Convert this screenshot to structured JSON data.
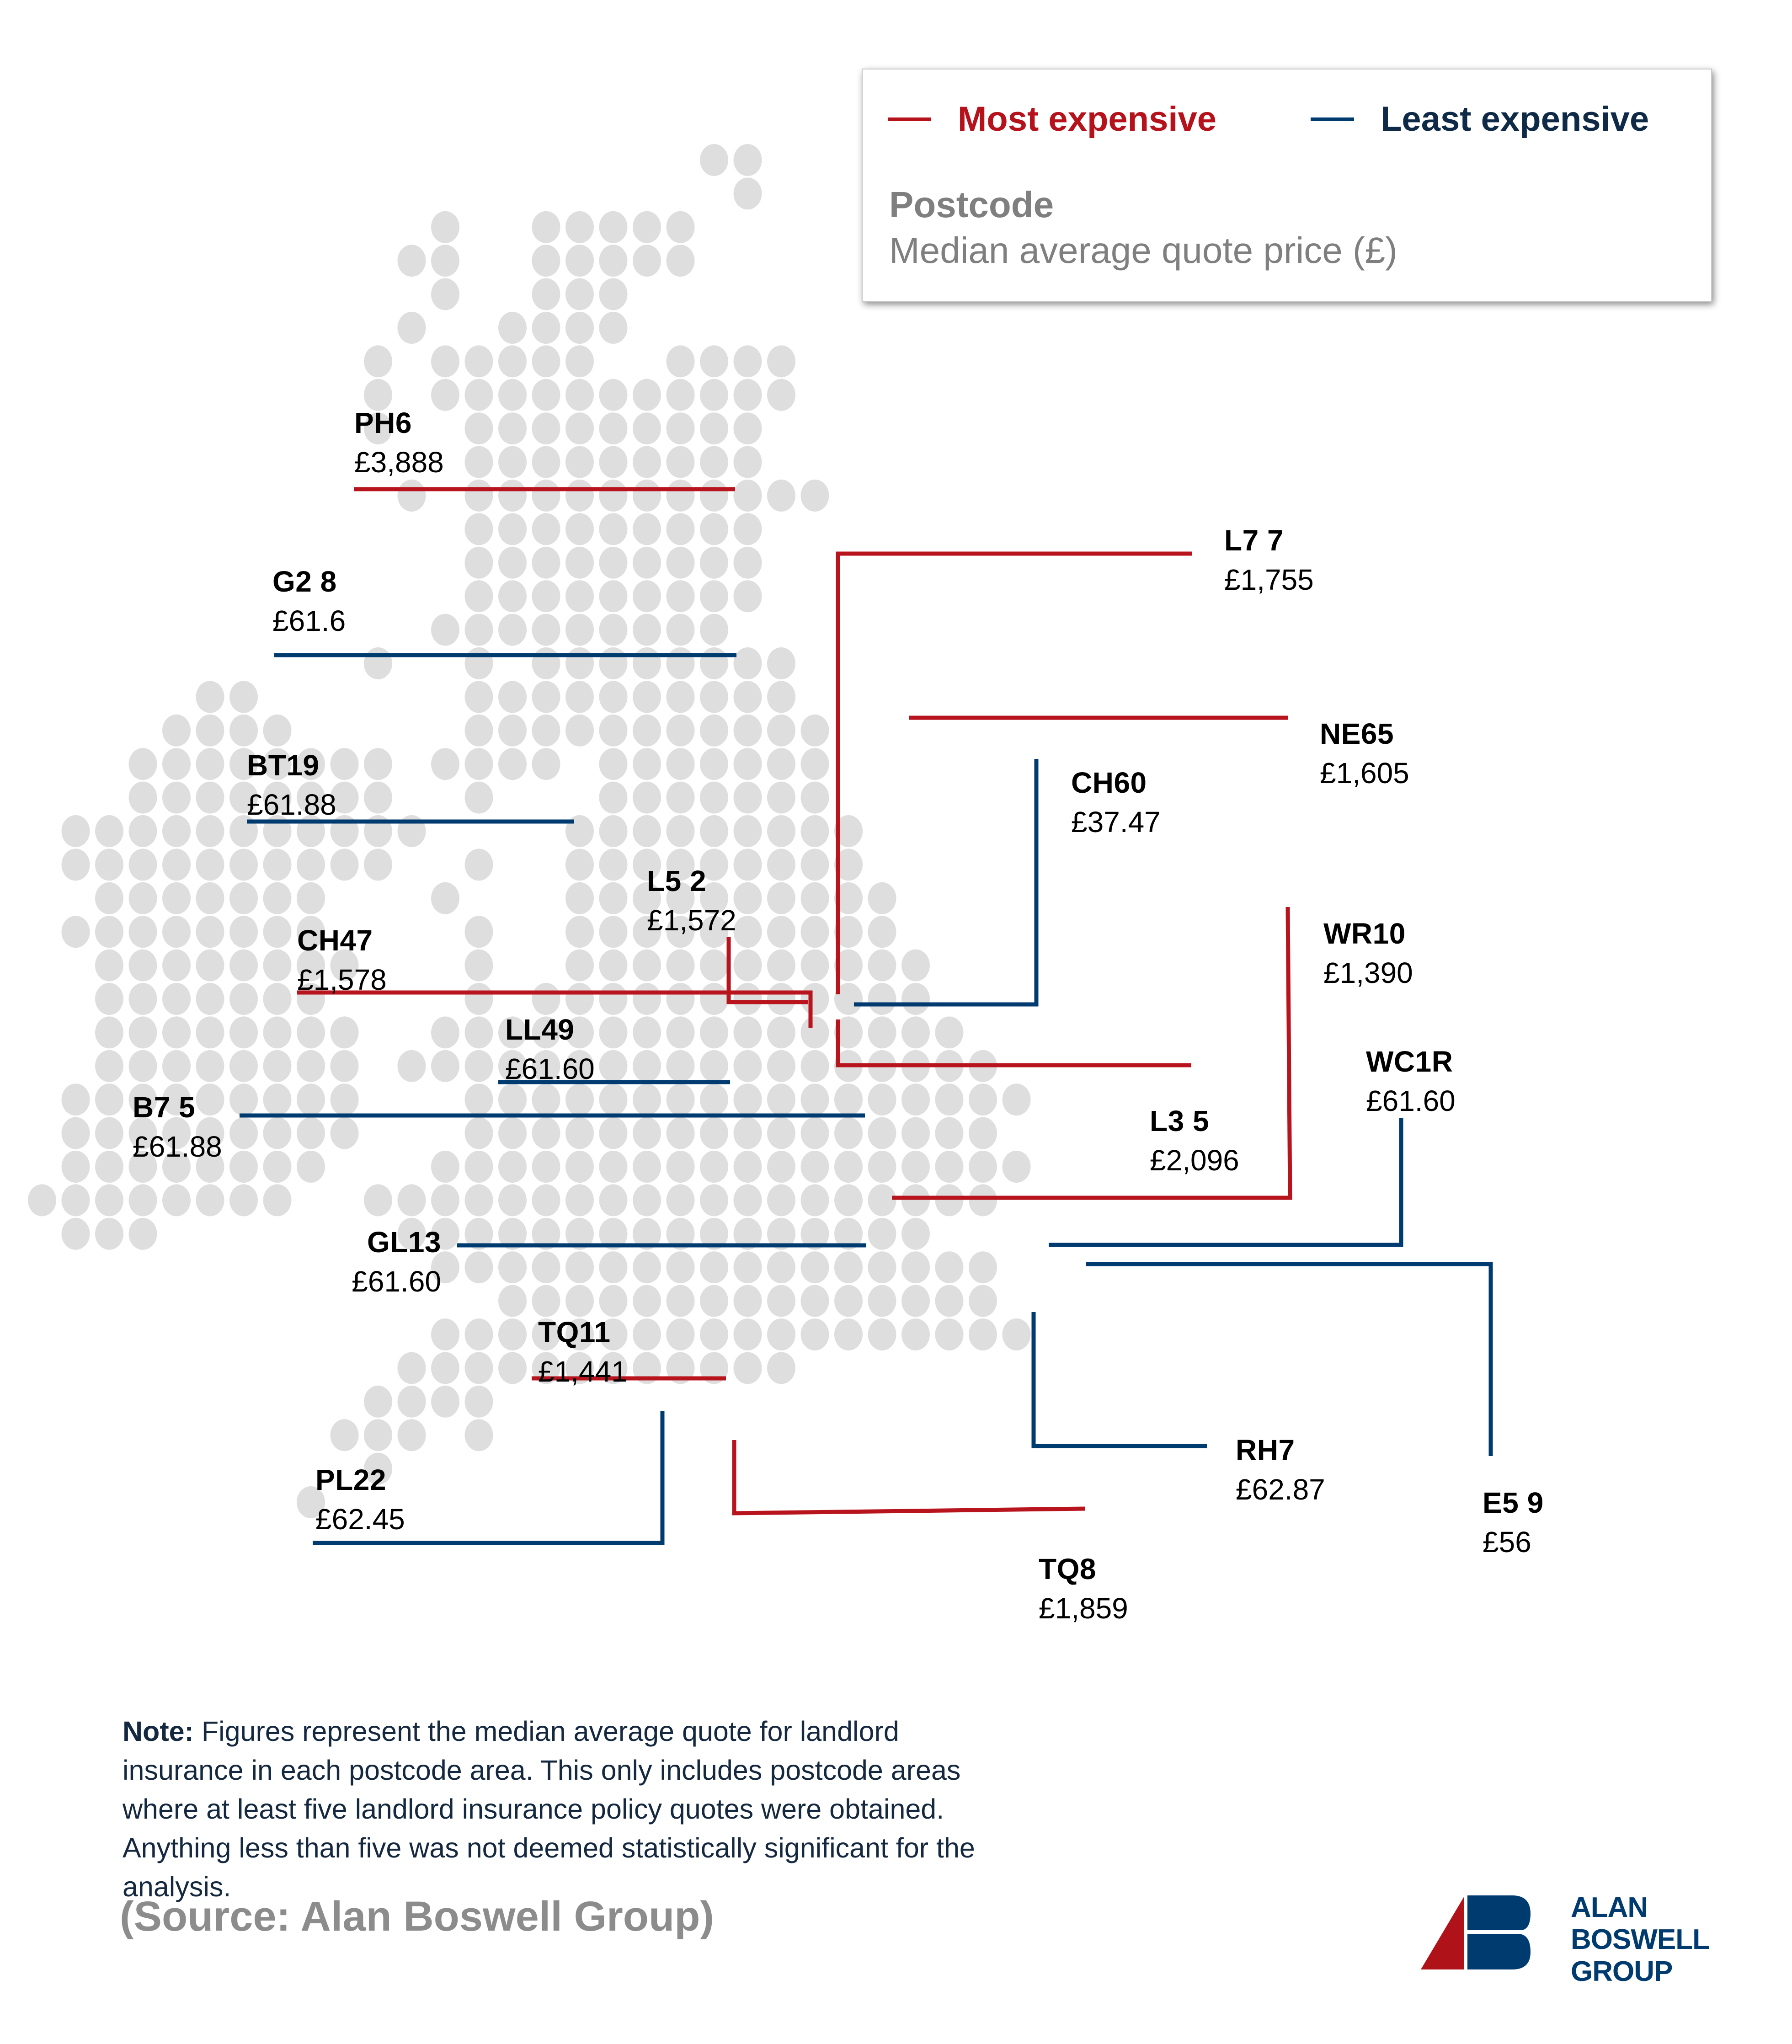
{
  "legend": {
    "most_label": "Most expensive",
    "least_label": "Least expensive",
    "title": "Postcode",
    "subtitle": "Median average quote price (£)",
    "colors": {
      "most": "#b5121b",
      "least": "#003b70",
      "dots": "#dedede"
    }
  },
  "chart_data": {
    "type": "map",
    "title": "Median average landlord insurance quote by postcode",
    "value_label": "Median average quote price (£)",
    "series": [
      {
        "name": "Most expensive",
        "color": "#b5121b",
        "points": [
          {
            "postcode": "PH6",
            "value": 3888,
            "label": "£3,888"
          },
          {
            "postcode": "L3 5",
            "value": 2096,
            "label": "£2,096"
          },
          {
            "postcode": "TQ8",
            "value": 1859,
            "label": "£1,859"
          },
          {
            "postcode": "L7 7",
            "value": 1755,
            "label": "£1,755"
          },
          {
            "postcode": "NE65",
            "value": 1605,
            "label": "£1,605"
          },
          {
            "postcode": "CH47",
            "value": 1578,
            "label": "£1,578"
          },
          {
            "postcode": "L5 2",
            "value": 1572,
            "label": "£1,572"
          },
          {
            "postcode": "TQ11",
            "value": 1441,
            "label": "£1,441"
          },
          {
            "postcode": "WR10",
            "value": 1390,
            "label": "£1,390"
          }
        ]
      },
      {
        "name": "Least expensive",
        "color": "#003b70",
        "points": [
          {
            "postcode": "CH60",
            "value": 37.47,
            "label": "£37.47"
          },
          {
            "postcode": "E5 9",
            "value": 56,
            "label": "£56"
          },
          {
            "postcode": "G2 8",
            "value": 61.6,
            "label": "£61.6"
          },
          {
            "postcode": "LL49",
            "value": 61.6,
            "label": "£61.60"
          },
          {
            "postcode": "GL13",
            "value": 61.6,
            "label": "£61.60"
          },
          {
            "postcode": "WC1R",
            "value": 61.6,
            "label": "£61.60"
          },
          {
            "postcode": "BT19",
            "value": 61.88,
            "label": "£61.88"
          },
          {
            "postcode": "B7 5",
            "value": 61.88,
            "label": "£61.88"
          },
          {
            "postcode": "PL22",
            "value": 62.45,
            "label": "£62.45"
          },
          {
            "postcode": "RH7",
            "value": 62.87,
            "label": "£62.87"
          }
        ]
      }
    ]
  },
  "labels": {
    "PH6": {
      "code": "PH6",
      "price": "£3,888"
    },
    "G2_8": {
      "code": "G2 8",
      "price": "£61.6"
    },
    "BT19": {
      "code": "BT19",
      "price": "£61.88"
    },
    "CH47": {
      "code": "CH47",
      "price": "£1,578"
    },
    "L5_2": {
      "code": "L5 2",
      "price": "£1,572"
    },
    "LL49": {
      "code": "LL49",
      "price": "£61.60"
    },
    "B7_5": {
      "code": "B7 5",
      "price": "£61.88"
    },
    "GL13": {
      "code": "GL13",
      "price": "£61.60"
    },
    "TQ11": {
      "code": "TQ11",
      "price": "£1,441"
    },
    "PL22": {
      "code": "PL22",
      "price": "£62.45"
    },
    "L7_7": {
      "code": "L7 7",
      "price": "£1,755"
    },
    "NE65": {
      "code": "NE65",
      "price": "£1,605"
    },
    "CH60": {
      "code": "CH60",
      "price": "£37.47"
    },
    "WR10": {
      "code": "WR10",
      "price": "£1,390"
    },
    "WC1R": {
      "code": "WC1R",
      "price": "£61.60"
    },
    "L3_5": {
      "code": "L3 5",
      "price": "£2,096"
    },
    "RH7": {
      "code": "RH7",
      "price": "£62.87"
    },
    "E5_9": {
      "code": "E5 9",
      "price": "£56"
    },
    "TQ8": {
      "code": "TQ8",
      "price": "£1,859"
    }
  },
  "note": {
    "label": "Note:",
    "text": " Figures represent the median average quote for landlord insurance in each postcode area. This only includes postcode areas where at least five landlord insurance policy quotes were obtained. Anything less than five was not deemed statistically significant for the analysis."
  },
  "source": "(Source: Alan Boswell Group)",
  "logo": {
    "line1": "ALAN",
    "line2": "BOSWELL",
    "line3": "GROUP"
  }
}
